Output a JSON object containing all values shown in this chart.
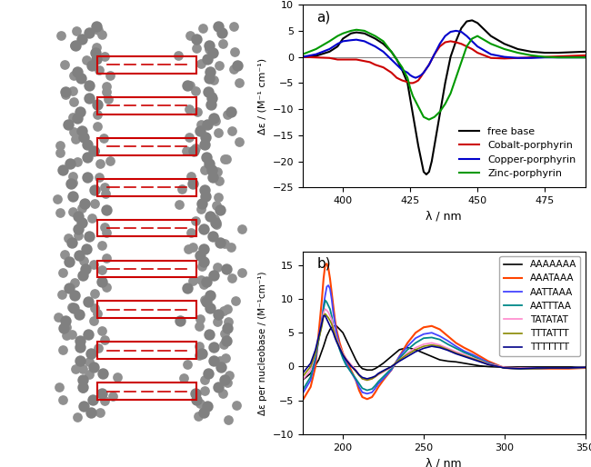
{
  "panel_a": {
    "title": "a)",
    "xlabel": "λ / nm",
    "ylabel": "Δε / (M⁻¹ cm⁻¹)",
    "xlim": [
      385,
      490
    ],
    "ylim": [
      -25,
      10
    ],
    "yticks": [
      -25,
      -20,
      -15,
      -10,
      -5,
      0,
      5,
      10
    ],
    "xticks": [
      400,
      425,
      450,
      475
    ],
    "zero_line": true,
    "series": [
      {
        "label": "free base",
        "color": "#000000",
        "lw": 1.5,
        "x": [
          385,
          390,
          395,
          398,
          400,
          403,
          405,
          408,
          410,
          412,
          415,
          418,
          420,
          422,
          424,
          425,
          426,
          427,
          428,
          429,
          430,
          431,
          432,
          433,
          434,
          435,
          436,
          437,
          438,
          439,
          440,
          442,
          444,
          446,
          448,
          450,
          452,
          455,
          460,
          465,
          470,
          475,
          480,
          485,
          490
        ],
        "y": [
          0,
          0.2,
          1.0,
          2.0,
          3.5,
          4.5,
          4.7,
          4.5,
          4.0,
          3.5,
          2.5,
          1.0,
          -0.5,
          -2.5,
          -5.0,
          -8.0,
          -11.0,
          -14.0,
          -17.0,
          -19.5,
          -22.0,
          -22.5,
          -22.0,
          -20.0,
          -17.0,
          -14.0,
          -11.0,
          -8.0,
          -5.0,
          -2.5,
          0,
          3.0,
          5.5,
          6.8,
          7.0,
          6.5,
          5.5,
          4.0,
          2.5,
          1.5,
          1.0,
          0.8,
          0.8,
          0.9,
          1.0
        ]
      },
      {
        "label": "Cobalt-porphyrin",
        "color": "#cc0000",
        "lw": 1.5,
        "x": [
          385,
          390,
          395,
          398,
          400,
          403,
          405,
          408,
          410,
          412,
          415,
          418,
          420,
          422,
          424,
          425,
          426,
          427,
          428,
          429,
          430,
          432,
          434,
          436,
          438,
          440,
          442,
          444,
          446,
          448,
          450,
          455,
          460,
          465,
          470,
          475,
          480,
          485,
          490
        ],
        "y": [
          0,
          -0.1,
          -0.2,
          -0.5,
          -0.5,
          -0.5,
          -0.5,
          -0.8,
          -1.0,
          -1.5,
          -2.0,
          -3.0,
          -4.0,
          -4.5,
          -4.8,
          -5.0,
          -5.0,
          -4.8,
          -4.5,
          -3.8,
          -3.0,
          -1.5,
          0.5,
          2.0,
          2.8,
          3.0,
          2.8,
          2.5,
          2.0,
          1.5,
          0.8,
          -0.2,
          -0.3,
          -0.2,
          -0.1,
          0,
          0.1,
          0.2,
          0.3
        ]
      },
      {
        "label": "Copper-porphyrin",
        "color": "#0000cc",
        "lw": 1.5,
        "x": [
          385,
          390,
          395,
          398,
          400,
          403,
          405,
          408,
          410,
          412,
          415,
          418,
          420,
          422,
          424,
          425,
          426,
          427,
          428,
          429,
          430,
          432,
          434,
          436,
          438,
          440,
          442,
          444,
          446,
          448,
          450,
          455,
          460,
          465,
          470,
          475,
          480,
          485,
          490
        ],
        "y": [
          0,
          0.5,
          1.5,
          2.5,
          3.0,
          3.2,
          3.3,
          3.0,
          2.5,
          2.0,
          1.0,
          -0.5,
          -1.5,
          -2.5,
          -3.0,
          -3.5,
          -3.8,
          -4.0,
          -3.8,
          -3.5,
          -3.0,
          -1.5,
          0.5,
          2.5,
          4.0,
          4.8,
          5.0,
          4.8,
          4.0,
          3.0,
          2.0,
          0.5,
          0,
          -0.2,
          -0.2,
          -0.1,
          -0.1,
          -0.1,
          -0.1
        ]
      },
      {
        "label": "Zinc-porphyrin",
        "color": "#009900",
        "lw": 1.5,
        "x": [
          385,
          390,
          395,
          398,
          400,
          403,
          405,
          408,
          410,
          412,
          415,
          418,
          420,
          422,
          424,
          425,
          426,
          427,
          428,
          429,
          430,
          432,
          434,
          436,
          438,
          440,
          441,
          442,
          443,
          444,
          445,
          446,
          448,
          450,
          455,
          460,
          465,
          470,
          475,
          480,
          485,
          490
        ],
        "y": [
          0.5,
          1.5,
          3.0,
          4.0,
          4.5,
          5.0,
          5.2,
          5.0,
          4.5,
          4.0,
          3.0,
          1.0,
          -0.5,
          -2.0,
          -4.0,
          -6.0,
          -7.5,
          -8.5,
          -9.5,
          -10.5,
          -11.5,
          -12.0,
          -11.5,
          -10.5,
          -9.0,
          -7.0,
          -5.5,
          -4.0,
          -2.5,
          -1.0,
          0.5,
          2.0,
          3.5,
          4.0,
          2.5,
          1.5,
          0.8,
          0.3,
          0,
          -0.1,
          -0.1,
          -0.1
        ]
      }
    ],
    "legend_loc": "lower right",
    "legend_fontsize": 8
  },
  "panel_b": {
    "title": "b)",
    "xlabel": "λ / nm",
    "ylabel": "Δε per nucleobase / (M⁻¹cm⁻¹)",
    "xlim": [
      175,
      350
    ],
    "ylim": [
      -10,
      17
    ],
    "yticks": [
      -10,
      -5,
      0,
      5,
      10,
      15
    ],
    "xticks": [
      200,
      250,
      300,
      350
    ],
    "zero_line": true,
    "series": [
      {
        "label": "AAAAAAA",
        "color": "#000000",
        "lw": 1.2,
        "x": [
          175,
          180,
          185,
          188,
          190,
          192,
          194,
          196,
          198,
          200,
          202,
          205,
          208,
          210,
          212,
          215,
          218,
          220,
          222,
          225,
          230,
          235,
          240,
          245,
          250,
          255,
          260,
          265,
          270,
          275,
          280,
          285,
          290,
          300,
          310,
          320,
          330,
          340,
          350
        ],
        "y": [
          -2,
          -1,
          1,
          3,
          4.5,
          5.5,
          6.0,
          6.0,
          5.5,
          5.0,
          4.0,
          2.5,
          1.0,
          0.2,
          -0.3,
          -0.5,
          -0.5,
          -0.3,
          0,
          0.5,
          1.5,
          2.5,
          2.8,
          2.5,
          2.0,
          1.5,
          1.0,
          0.8,
          0.7,
          0.5,
          0.3,
          0.1,
          0,
          -0.1,
          -0.1,
          -0.1,
          -0.1,
          -0.1,
          -0.1
        ]
      },
      {
        "label": "AAATAAA",
        "color": "#ff4400",
        "lw": 1.5,
        "x": [
          175,
          180,
          183,
          185,
          187,
          188,
          189,
          190,
          191,
          192,
          193,
          194,
          195,
          196,
          198,
          200,
          202,
          205,
          208,
          210,
          212,
          215,
          218,
          220,
          222,
          225,
          230,
          235,
          240,
          245,
          250,
          255,
          260,
          265,
          270,
          275,
          280,
          285,
          290,
          300,
          310,
          320,
          330,
          340,
          350
        ],
        "y": [
          -5,
          -3,
          0,
          5,
          10,
          13,
          15,
          15.2,
          14.5,
          13.0,
          11.0,
          9.0,
          7.0,
          5.5,
          3.5,
          2.0,
          1.0,
          -0.5,
          -2.0,
          -3.5,
          -4.5,
          -4.8,
          -4.5,
          -3.8,
          -3.0,
          -2.0,
          -0.5,
          1.5,
          3.5,
          5.0,
          5.8,
          6.0,
          5.5,
          4.5,
          3.5,
          2.8,
          2.2,
          1.5,
          0.8,
          -0.2,
          -0.3,
          -0.3,
          -0.3,
          -0.3,
          -0.2
        ]
      },
      {
        "label": "AATTAAA",
        "color": "#4444ff",
        "lw": 1.3,
        "x": [
          175,
          180,
          183,
          185,
          187,
          188,
          189,
          190,
          191,
          192,
          193,
          194,
          195,
          196,
          198,
          200,
          202,
          205,
          208,
          210,
          212,
          215,
          218,
          220,
          222,
          225,
          230,
          235,
          240,
          245,
          250,
          255,
          260,
          265,
          270,
          275,
          280,
          285,
          290,
          300,
          310,
          320,
          330,
          340,
          350
        ],
        "y": [
          -4,
          -2,
          1,
          4,
          7,
          9,
          10.5,
          11.8,
          12.0,
          11.5,
          10.0,
          8.0,
          6.5,
          5.0,
          3.0,
          1.5,
          0.5,
          -0.8,
          -2.0,
          -3.0,
          -3.8,
          -4.0,
          -3.8,
          -3.2,
          -2.5,
          -1.8,
          -0.5,
          1.5,
          3.0,
          4.2,
          4.8,
          5.0,
          4.5,
          3.8,
          3.0,
          2.3,
          1.8,
          1.2,
          0.6,
          -0.2,
          -0.3,
          -0.3,
          -0.2,
          -0.2,
          -0.1
        ]
      },
      {
        "label": "AATTTAA",
        "color": "#008888",
        "lw": 1.3,
        "x": [
          175,
          180,
          183,
          185,
          187,
          188,
          189,
          190,
          191,
          192,
          193,
          194,
          195,
          196,
          198,
          200,
          202,
          205,
          208,
          210,
          212,
          215,
          218,
          220,
          222,
          225,
          230,
          235,
          240,
          245,
          250,
          255,
          260,
          265,
          270,
          275,
          280,
          285,
          290,
          300,
          310,
          320,
          330,
          340,
          350
        ],
        "y": [
          -3.5,
          -1.5,
          1.5,
          4,
          6.5,
          8.5,
          9.8,
          9.5,
          9.0,
          8.5,
          7.5,
          6.0,
          5.0,
          4.0,
          2.5,
          1.2,
          0.2,
          -0.8,
          -1.8,
          -2.5,
          -3.2,
          -3.5,
          -3.3,
          -2.8,
          -2.2,
          -1.5,
          -0.3,
          1.2,
          2.5,
          3.5,
          4.2,
          4.3,
          4.0,
          3.3,
          2.7,
          2.1,
          1.6,
          1.0,
          0.5,
          -0.2,
          -0.3,
          -0.2,
          -0.2,
          -0.2,
          -0.1
        ]
      },
      {
        "label": "TATATAT",
        "color": "#ff88cc",
        "lw": 1.2,
        "x": [
          175,
          180,
          183,
          185,
          187,
          188,
          189,
          190,
          191,
          192,
          193,
          194,
          195,
          196,
          198,
          200,
          202,
          205,
          208,
          210,
          212,
          215,
          218,
          220,
          222,
          225,
          230,
          235,
          240,
          245,
          250,
          255,
          260,
          265,
          270,
          275,
          280,
          285,
          290,
          300,
          310,
          320,
          330,
          340,
          350
        ],
        "y": [
          -2,
          -0.5,
          2,
          4.5,
          6.5,
          8.0,
          8.5,
          8.3,
          8.0,
          7.5,
          7.0,
          6.0,
          5.0,
          4.2,
          3.0,
          2.0,
          1.2,
          0.3,
          -0.5,
          -1.2,
          -1.8,
          -2.0,
          -1.8,
          -1.5,
          -1.2,
          -0.8,
          -0.1,
          1.0,
          2.0,
          2.8,
          3.3,
          3.5,
          3.2,
          2.7,
          2.2,
          1.8,
          1.3,
          0.9,
          0.4,
          -0.1,
          -0.2,
          -0.2,
          -0.2,
          -0.2,
          -0.1
        ]
      },
      {
        "label": "TTTATTT",
        "color": "#888800",
        "lw": 1.2,
        "x": [
          175,
          180,
          183,
          185,
          187,
          188,
          189,
          190,
          191,
          192,
          193,
          194,
          195,
          196,
          198,
          200,
          202,
          205,
          208,
          210,
          212,
          215,
          218,
          220,
          222,
          225,
          230,
          235,
          240,
          245,
          250,
          255,
          260,
          265,
          270,
          275,
          280,
          285,
          290,
          300,
          310,
          320,
          330,
          340,
          350
        ],
        "y": [
          -1.5,
          0,
          2,
          4,
          6.0,
          7.5,
          7.8,
          7.5,
          7.2,
          6.8,
          6.3,
          5.5,
          4.7,
          4.0,
          2.8,
          1.8,
          1.0,
          0.1,
          -0.7,
          -1.3,
          -1.8,
          -2.0,
          -1.8,
          -1.5,
          -1.1,
          -0.7,
          0,
          1.0,
          1.8,
          2.5,
          3.0,
          3.2,
          3.0,
          2.5,
          2.0,
          1.6,
          1.2,
          0.8,
          0.3,
          -0.2,
          -0.3,
          -0.3,
          -0.2,
          -0.2,
          -0.1
        ]
      },
      {
        "label": "TTTTTTT",
        "color": "#000088",
        "lw": 1.2,
        "x": [
          175,
          180,
          183,
          185,
          187,
          188,
          189,
          190,
          191,
          192,
          193,
          194,
          195,
          196,
          198,
          200,
          202,
          205,
          208,
          210,
          212,
          215,
          218,
          220,
          222,
          225,
          230,
          235,
          240,
          245,
          250,
          255,
          260,
          265,
          270,
          275,
          280,
          285,
          290,
          300,
          310,
          320,
          330,
          340,
          350
        ],
        "y": [
          -1,
          0.5,
          2.5,
          4.5,
          6.5,
          7.5,
          7.5,
          7.0,
          6.5,
          6.0,
          5.5,
          5.0,
          4.3,
          3.7,
          2.7,
          1.7,
          1.0,
          0.1,
          -0.6,
          -1.2,
          -1.6,
          -1.8,
          -1.6,
          -1.4,
          -1.0,
          -0.6,
          0,
          0.8,
          1.5,
          2.2,
          2.7,
          3.0,
          2.8,
          2.4,
          1.9,
          1.5,
          1.1,
          0.7,
          0.3,
          -0.2,
          -0.3,
          -0.2,
          -0.2,
          -0.2,
          -0.1
        ]
      }
    ],
    "legend_loc": "upper right",
    "legend_fontsize": 7.5
  },
  "bg_color": "#ffffff",
  "left_panel_bg": "#f0f0f0"
}
